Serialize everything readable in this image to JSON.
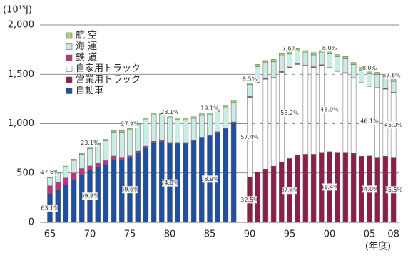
{
  "chart_data": {
    "type": "bar",
    "stacked": true,
    "y_unit": "(10¹⁵J)",
    "x_unit": "(年度)",
    "categories": [
      "65",
      null,
      null,
      null,
      null,
      "70",
      null,
      null,
      null,
      null,
      "75",
      null,
      null,
      null,
      null,
      "80",
      null,
      null,
      null,
      null,
      "85",
      null,
      null,
      null,
      null,
      "90",
      null,
      null,
      null,
      null,
      "95",
      null,
      null,
      null,
      null,
      "00",
      null,
      null,
      null,
      null,
      "05",
      null,
      null,
      "08"
    ],
    "series": [
      {
        "name": "航 空",
        "color": "#9fd36a",
        "values": [
          9,
          10,
          10,
          12,
          12,
          13,
          14,
          15,
          16,
          17,
          12,
          13,
          13,
          14,
          15,
          13,
          15,
          16,
          16,
          17,
          14,
          17,
          19,
          22,
          null,
          15,
          22,
          22,
          24,
          26,
          25,
          25,
          23,
          23,
          23,
          23,
          23,
          23,
          22,
          26,
          24,
          24,
          24,
          22
        ]
      },
      {
        "name": "海 運",
        "color": "#c9ece4",
        "values": [
          81,
          95,
          110,
          128,
          143,
          176,
          188,
          200,
          242,
          253,
          265,
          265,
          265,
          265,
          254,
          247,
          235,
          225,
          220,
          220,
          212,
          205,
          203,
          200,
          null,
          120,
          160,
          160,
          158,
          156,
          131,
          128,
          125,
          120,
          120,
          138,
          140,
          140,
          132,
          128,
          122,
          130,
          120,
          110
        ]
      },
      {
        "name": "鉄 道",
        "color": "#c2317c",
        "values": [
          80,
          75,
          70,
          65,
          60,
          40,
          38,
          35,
          32,
          30,
          12,
          12,
          12,
          11,
          11,
          10,
          10,
          9,
          9,
          8,
          8,
          8,
          8,
          8,
          null,
          8,
          8,
          8,
          8,
          8,
          7,
          7,
          7,
          7,
          7,
          7,
          7,
          7,
          6,
          6,
          6,
          6,
          6,
          6
        ]
      },
      {
        "name": "自家用トラック",
        "color": "#ffffff",
        "values": [
          null,
          null,
          null,
          null,
          null,
          null,
          null,
          null,
          null,
          null,
          null,
          null,
          null,
          null,
          null,
          null,
          null,
          null,
          null,
          null,
          null,
          null,
          null,
          null,
          null,
          809,
          900,
          910,
          890,
          910,
          920,
          920,
          895,
          880,
          880,
          846,
          820,
          800,
          760,
          740,
          705,
          700,
          680,
          652
        ]
      },
      {
        "name": "営業用トラック",
        "color": "#8c1f4a",
        "values": [
          null,
          null,
          null,
          null,
          null,
          null,
          null,
          null,
          null,
          null,
          null,
          null,
          null,
          null,
          null,
          null,
          null,
          null,
          null,
          null,
          null,
          null,
          null,
          null,
          null,
          458,
          510,
          540,
          570,
          610,
          647,
          680,
          690,
          690,
          710,
          716,
          710,
          710,
          700,
          670,
          673,
          660,
          670,
          660
        ]
      },
      {
        "name": "自動車",
        "color": "#1f4f9f",
        "values": [
          290,
          330,
          380,
          435,
          485,
          531,
          560,
          590,
          640,
          630,
          661,
          710,
          760,
          810,
          820,
          800,
          800,
          800,
          825,
          855,
          876,
          910,
          950,
          1010,
          null,
          null,
          null,
          null,
          null,
          null,
          null,
          null,
          null,
          null,
          null,
          null,
          null,
          null,
          null,
          null,
          null,
          null,
          null,
          null
        ]
      }
    ],
    "annotations": [
      "17.6%",
      "63.1%",
      "23.1%",
      "69.9%",
      "27.9%",
      "69.6%",
      "23.1%",
      "74.8%",
      "19.1%",
      "78.9%",
      "8.5%",
      "57.4%",
      "32.5%",
      "7.6%",
      "53.2%",
      "37.4%",
      "8.0%",
      "48.9%",
      "41.4%",
      "8.0%",
      "46.1%",
      "44.0%",
      "7.6%",
      "45.0%",
      "45.5%"
    ],
    "ylim": [
      0,
      2000
    ],
    "yticks": [
      0,
      500,
      {
        "value": 1000,
        "label": "1,000"
      },
      {
        "value": 1500,
        "label": "1,500"
      },
      {
        "value": 2000,
        "label": "2,000"
      }
    ],
    "grid": true
  }
}
